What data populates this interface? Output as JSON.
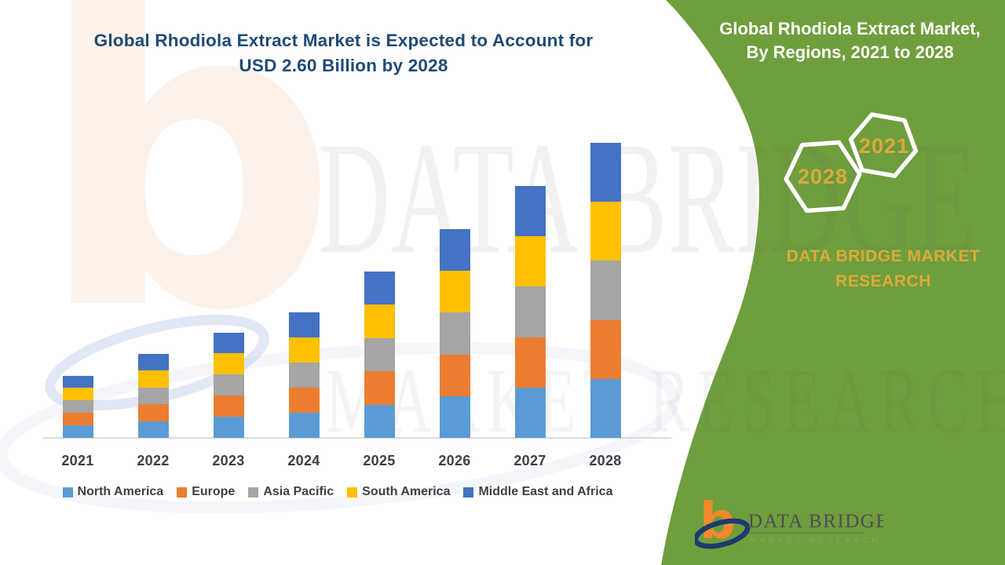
{
  "header": {
    "title_line1": "Global Rhodiola Extract Market is Expected to Account for",
    "title_line2": "USD 2.60 Billion by 2028"
  },
  "side_panel": {
    "heading_line1": "Global Rhodiola Extract Market,",
    "heading_line2": "By Regions, 2021 to 2028",
    "hexagons": [
      {
        "label": "2028"
      },
      {
        "label": "2021"
      }
    ],
    "brand_line1": "DATA BRIDGE MARKET",
    "brand_line2": "RESEARCH",
    "colors": {
      "panel_green": "#6f9e3d",
      "gold": "#dba93c",
      "white": "#ffffff"
    }
  },
  "watermarks": {
    "letter": "b",
    "text1": "DATA BRIDGE",
    "text2": "MARKET RESEARCH"
  },
  "logo": {
    "name_text": "DATA BRIDGE",
    "sub_text": "MARKET RESEARCH",
    "orange": "#f08a2c",
    "navy": "#1e3a6e",
    "name_color": "#4e4e58",
    "sub_color": "#86a45e"
  },
  "chart_data": {
    "type": "bar",
    "stacked": true,
    "title": "Global Rhodiola Extract Market is Expected to Account for USD 2.60 Billion by 2028",
    "xlabel": "",
    "ylabel": "",
    "unit": "USD Billion",
    "ylim": [
      0,
      2.6
    ],
    "grid": false,
    "legend_position": "bottom",
    "values_estimated": true,
    "categories": [
      "2021",
      "2022",
      "2023",
      "2024",
      "2025",
      "2026",
      "2027",
      "2028"
    ],
    "totals": [
      0.55,
      0.74,
      0.93,
      1.11,
      1.47,
      1.84,
      2.22,
      2.6
    ],
    "series": [
      {
        "name": "North America",
        "color": "#5B9BD5",
        "values": [
          0.11,
          0.148,
          0.186,
          0.222,
          0.294,
          0.368,
          0.444,
          0.52
        ]
      },
      {
        "name": "Europe",
        "color": "#ED7D31",
        "values": [
          0.11,
          0.148,
          0.186,
          0.222,
          0.294,
          0.368,
          0.444,
          0.52
        ]
      },
      {
        "name": "Asia Pacific",
        "color": "#A5A5A5",
        "values": [
          0.11,
          0.148,
          0.186,
          0.222,
          0.294,
          0.368,
          0.444,
          0.52
        ]
      },
      {
        "name": "South America",
        "color": "#FFC000",
        "values": [
          0.11,
          0.148,
          0.186,
          0.222,
          0.294,
          0.368,
          0.444,
          0.52
        ]
      },
      {
        "name": "Middle East and Africa",
        "color": "#4472C4",
        "values": [
          0.11,
          0.148,
          0.186,
          0.222,
          0.294,
          0.368,
          0.444,
          0.52
        ]
      }
    ]
  }
}
